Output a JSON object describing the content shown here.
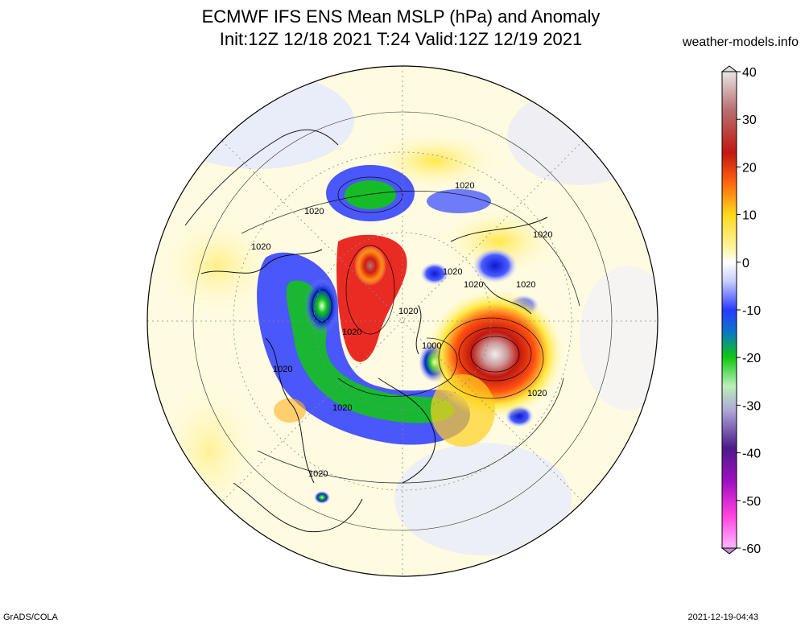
{
  "title": {
    "line1": "ECMWF IFS ENS Mean MSLP (hPa) and Anomaly",
    "line2": "Init:12Z 12/18 2021  T:24 Valid:12Z 12/19 2021"
  },
  "site": "weather-models.info",
  "footer": {
    "left": "GrADS/COLA",
    "right": "2021-12-19-04:43"
  },
  "colorbar": {
    "ticks": [
      "40",
      "30",
      "20",
      "10",
      "0",
      "-10",
      "-20",
      "-30",
      "-40",
      "-50",
      "-60"
    ]
  },
  "contour_labels": [
    {
      "text": "1020"
    },
    {
      "text": "1020"
    },
    {
      "text": "1020"
    },
    {
      "text": "1020"
    },
    {
      "text": "1020"
    },
    {
      "text": "1020"
    },
    {
      "text": "1020"
    },
    {
      "text": "1020"
    },
    {
      "text": "1020"
    },
    {
      "text": "1020"
    },
    {
      "text": "1020"
    },
    {
      "text": "1020"
    },
    {
      "text": "1020"
    },
    {
      "text": "1000"
    },
    {
      "text": "1020"
    }
  ],
  "colors": {
    "anomaly_positive": [
      "#fffbd2",
      "#ffe94a",
      "#ff9a1a",
      "#e81410",
      "#a01818",
      "#cc9a9a",
      "#e8e2e2"
    ],
    "anomaly_negative": [
      "#dce0ff",
      "#4a5cff",
      "#0a1ad0",
      "#10c810",
      "#b8f0b8",
      "#6a3c9a",
      "#c010c0",
      "#ff80ff"
    ]
  }
}
